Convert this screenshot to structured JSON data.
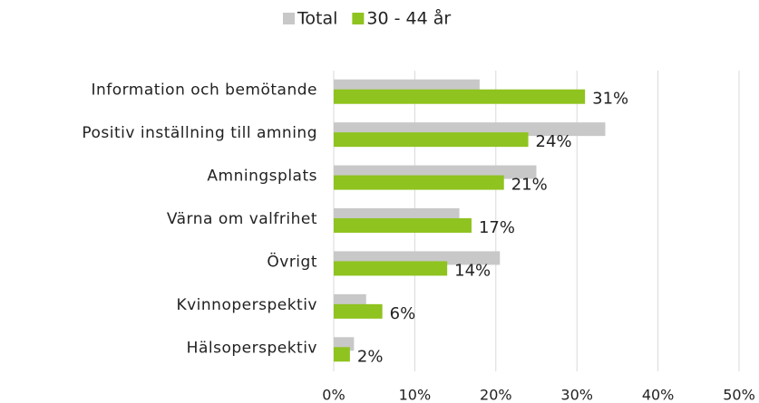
{
  "chart_data": {
    "type": "bar",
    "orientation": "horizontal",
    "categories": [
      "Information och bemötande",
      "Positiv inställning till amning",
      "Amningsplats",
      "Värna om valfrihet",
      "Övrigt",
      "Kvinnoperspektiv",
      "Hälsoperspektiv"
    ],
    "series": [
      {
        "name": "Total",
        "color": "#c8c8c8",
        "values": [
          18,
          33.5,
          25,
          15.5,
          20.5,
          4,
          2.5
        ]
      },
      {
        "name": "30 - 44 år",
        "color": "#8fc31f",
        "values": [
          31,
          24,
          21,
          17,
          14,
          6,
          2
        ],
        "value_labels": [
          "31%",
          "24%",
          "21%",
          "17%",
          "14%",
          "6%",
          "2%"
        ]
      }
    ],
    "xlim": [
      0,
      50
    ],
    "xticks": [
      {
        "value": 0,
        "label": "0%"
      },
      {
        "value": 10,
        "label": "10%"
      },
      {
        "value": 20,
        "label": "20%"
      },
      {
        "value": 30,
        "label": "30%"
      },
      {
        "value": 40,
        "label": "40%"
      },
      {
        "value": 50,
        "label": "50%"
      }
    ],
    "grid": true,
    "legend": "top"
  }
}
